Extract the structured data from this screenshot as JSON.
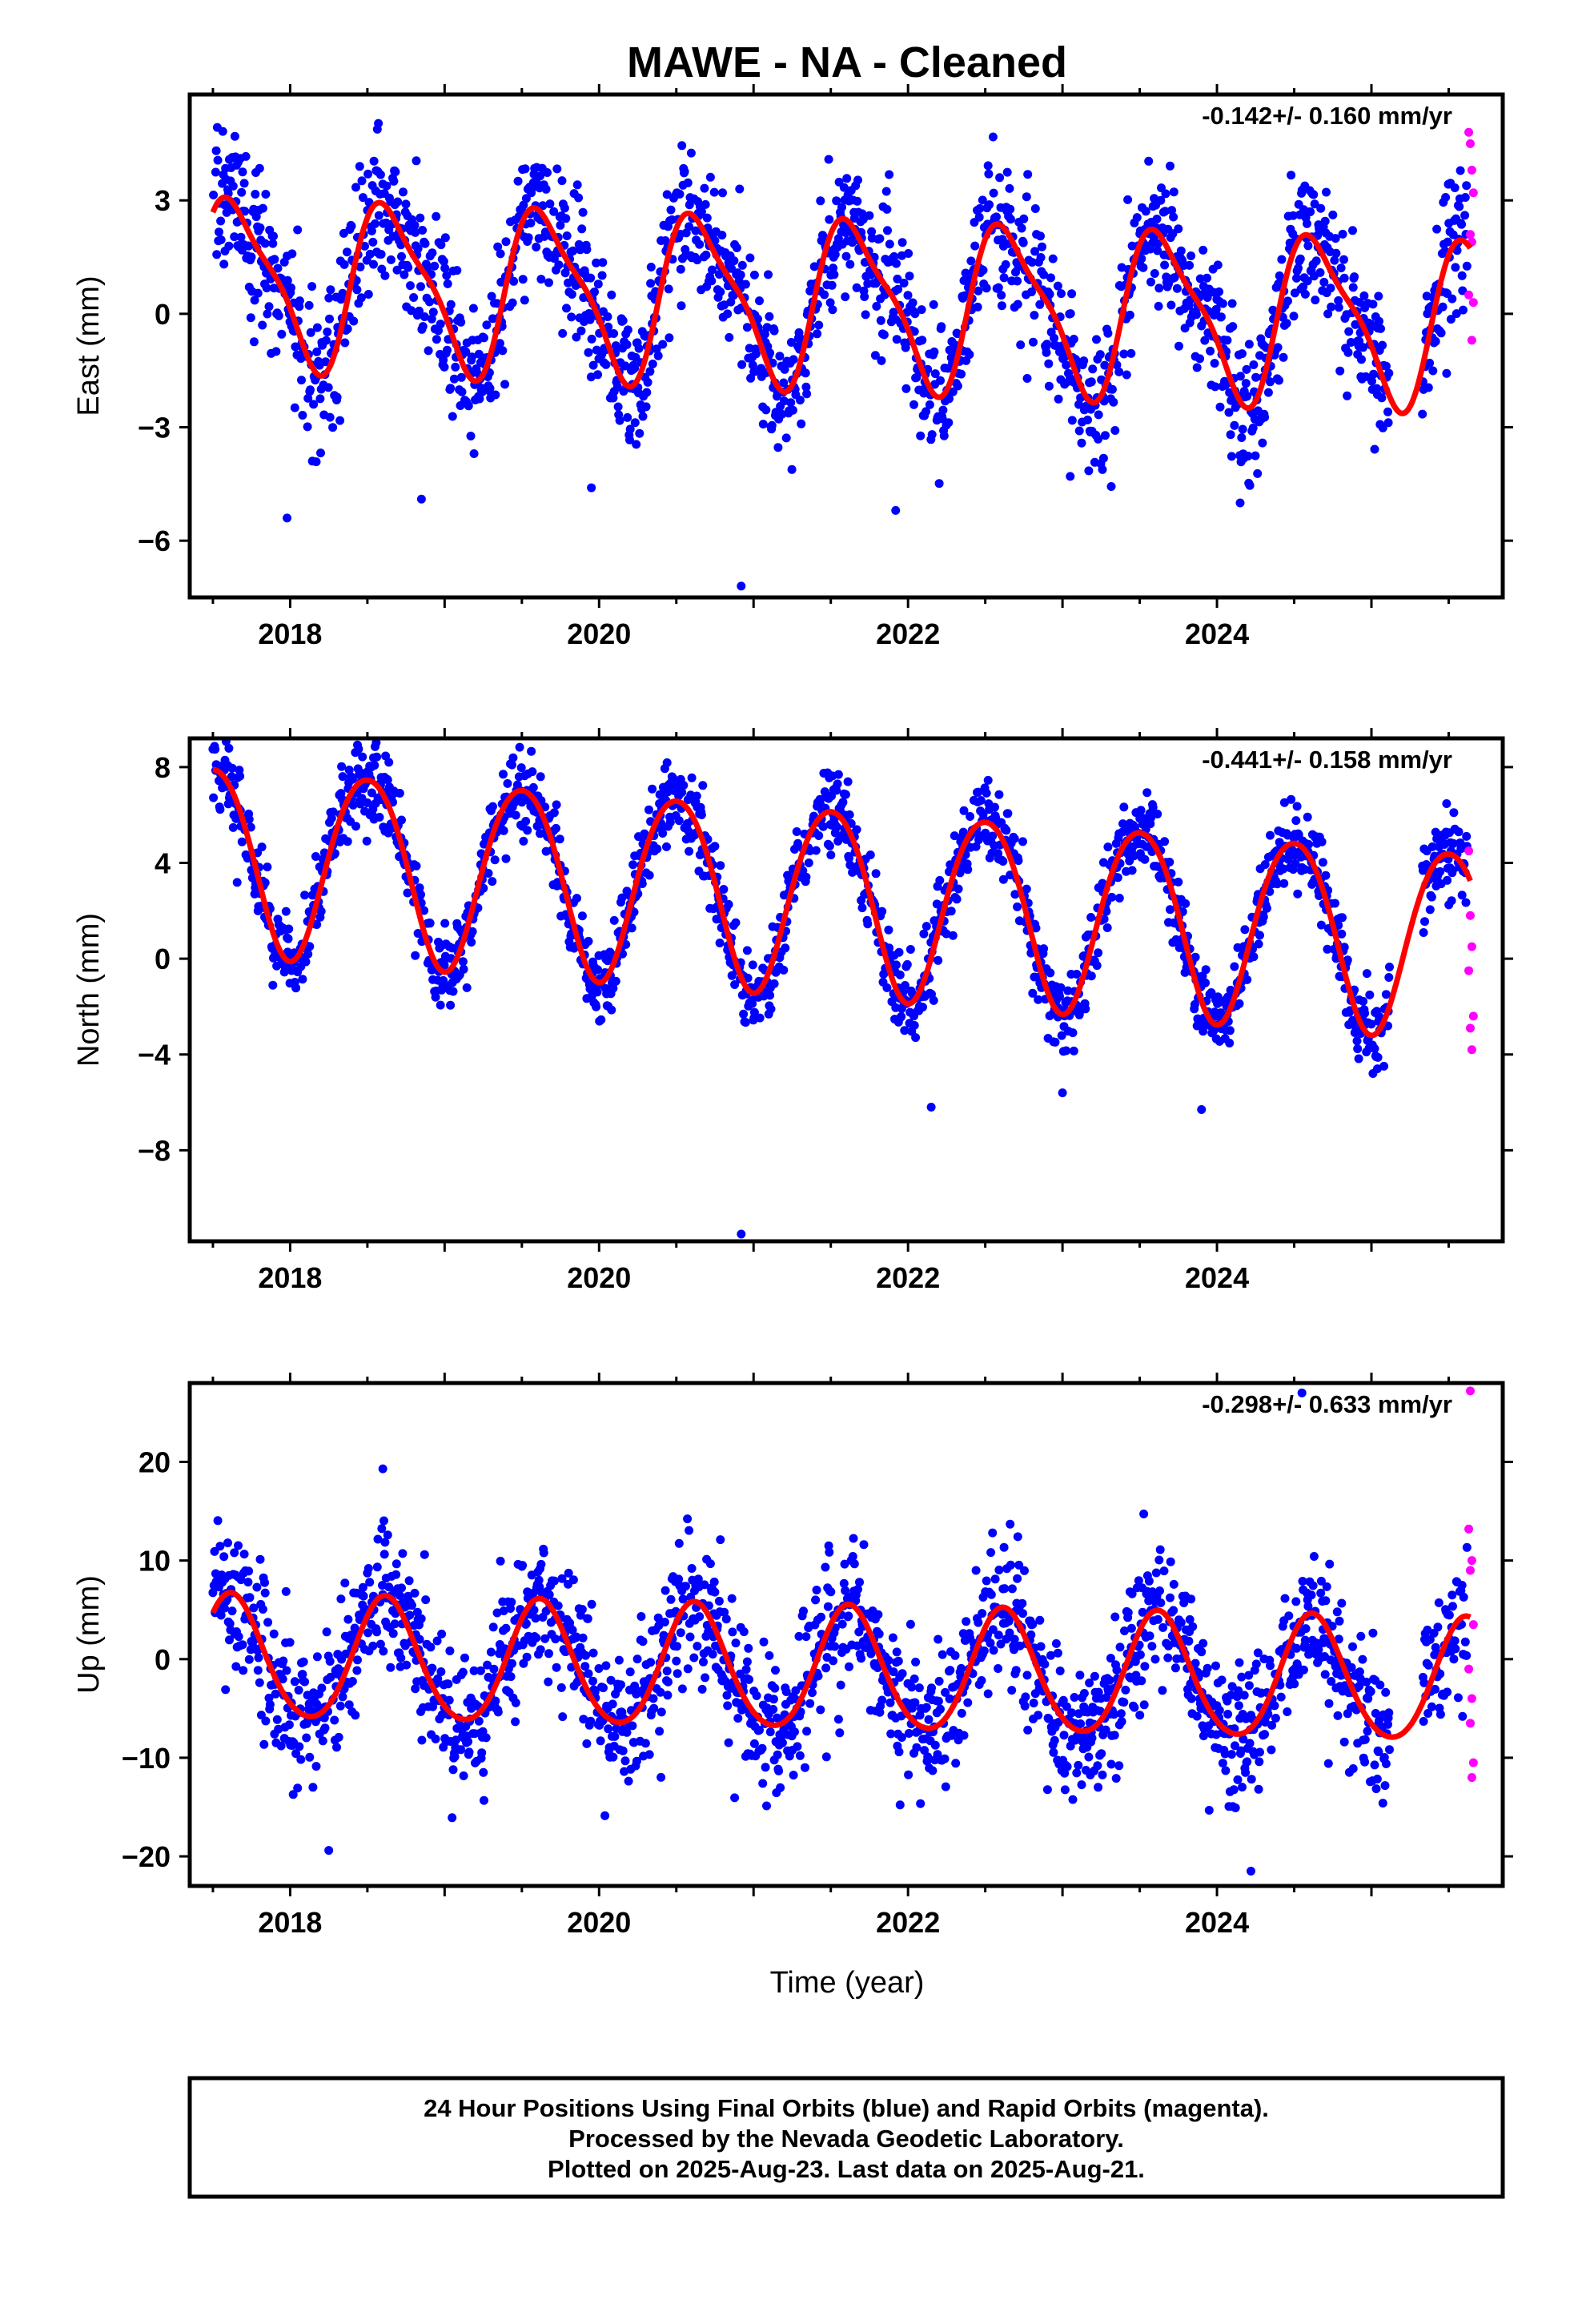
{
  "title": "MAWE  - NA - Cleaned",
  "x_axis_label": "Time (year)",
  "footer": {
    "line1": "24 Hour Positions Using Final Orbits (blue) and Rapid Orbits (magenta).",
    "line2": "Processed by the Nevada Geodetic Laboratory.",
    "line3": "Plotted on 2025-Aug-23. Last data on 2025-Aug-21."
  },
  "colors": {
    "final": "#0000ff",
    "rapid": "#ff00ff",
    "fit": "#ff0000",
    "frame": "#000000"
  },
  "chart_data": [
    {
      "type": "scatter",
      "name": "east",
      "ylabel": "East (mm)",
      "rate_text": "-0.142+/- 0.160 mm/yr",
      "xlim": [
        2017.35,
        2025.85
      ],
      "ylim": [
        -7.5,
        5.8
      ],
      "xticks": [
        2018,
        2020,
        2022,
        2024
      ],
      "yticks": [
        3,
        0,
        -3,
        -6
      ],
      "ytick_labels": [
        "3",
        "0",
        "−3",
        "−6"
      ],
      "start": 2017.5,
      "end": 2025.64,
      "series": [
        {
          "name": "Final Orbits",
          "color": "#0000ff"
        },
        {
          "name": "Rapid Orbits",
          "color": "#ff00ff"
        },
        {
          "name": "Fit",
          "color": "#ff0000"
        }
      ],
      "fit": {
        "offset": 0.9,
        "trend": -0.142,
        "amp_annual": 2.1,
        "peak_phase": 0.65,
        "amp_semi": 0.55,
        "semi_phase": 0.0
      },
      "scatter_sigma": 0.95,
      "outliers": [
        [
          2020.92,
          -7.2
        ],
        [
          2017.98,
          -5.4
        ],
        [
          2021.92,
          -5.2
        ],
        [
          2024.15,
          -5.0
        ],
        [
          2018.85,
          -4.9
        ],
        [
          2019.95,
          -4.6
        ],
        [
          2023.05,
          -4.3
        ]
      ],
      "rapid_points": [
        [
          2025.63,
          4.8
        ],
        [
          2025.64,
          4.5
        ],
        [
          2025.65,
          3.8
        ],
        [
          2025.66,
          3.2
        ],
        [
          2025.64,
          2.1
        ],
        [
          2025.65,
          1.9
        ],
        [
          2025.63,
          0.5
        ],
        [
          2025.66,
          0.3
        ],
        [
          2025.65,
          -0.7
        ]
      ]
    },
    {
      "type": "scatter",
      "name": "north",
      "ylabel": "North (mm)",
      "rate_text": "-0.441+/- 0.158 mm/yr",
      "xlim": [
        2017.35,
        2025.85
      ],
      "ylim": [
        -11.8,
        9.2
      ],
      "xticks": [
        2018,
        2020,
        2022,
        2024
      ],
      "yticks": [
        8,
        4,
        0,
        -4,
        -8
      ],
      "ytick_labels": [
        "8",
        "4",
        "0",
        "−4",
        "−8"
      ],
      "start": 2017.5,
      "end": 2025.64,
      "series": [
        {
          "name": "Final Orbits",
          "color": "#0000ff"
        },
        {
          "name": "Rapid Orbits",
          "color": "#ff00ff"
        },
        {
          "name": "Fit",
          "color": "#ff0000"
        }
      ],
      "fit": {
        "offset": 4.3,
        "trend": -0.441,
        "amp_annual": 3.9,
        "peak_phase": 0.5,
        "amp_semi": 0.3,
        "semi_phase": 0.25
      },
      "scatter_sigma": 0.85,
      "outliers": [
        [
          2020.92,
          -11.5
        ],
        [
          2022.15,
          -6.2
        ],
        [
          2023.0,
          -5.6
        ],
        [
          2023.9,
          -6.3
        ]
      ],
      "rapid_points": [
        [
          2025.63,
          4.5
        ],
        [
          2025.64,
          1.8
        ],
        [
          2025.65,
          0.5
        ],
        [
          2025.63,
          -0.5
        ],
        [
          2025.66,
          -2.4
        ],
        [
          2025.64,
          -2.9
        ],
        [
          2025.65,
          -3.8
        ]
      ]
    },
    {
      "type": "scatter",
      "name": "up",
      "ylabel": "Up (mm)",
      "rate_text": "-0.298+/- 0.633 mm/yr",
      "xlim": [
        2017.35,
        2025.85
      ],
      "ylim": [
        -23,
        28
      ],
      "xticks": [
        2018,
        2020,
        2022,
        2024
      ],
      "yticks": [
        20,
        10,
        0,
        -10,
        -20
      ],
      "ytick_labels": [
        "20",
        "10",
        "0",
        "−10",
        "−20"
      ],
      "start": 2017.5,
      "end": 2025.64,
      "series": [
        {
          "name": "Final Orbits",
          "color": "#0000ff"
        },
        {
          "name": "Rapid Orbits",
          "color": "#ff00ff"
        },
        {
          "name": "Fit",
          "color": "#ff0000"
        }
      ],
      "fit": {
        "offset": 0.0,
        "trend": -0.298,
        "amp_annual": 6.2,
        "peak_phase": 0.62,
        "amp_semi": 0.6,
        "semi_phase": 0.1
      },
      "scatter_sigma": 3.6,
      "outliers": [
        [
          2024.22,
          -21.5
        ],
        [
          2018.25,
          -19.4
        ],
        [
          2024.55,
          27.0
        ],
        [
          2018.6,
          19.3
        ]
      ],
      "rapid_points": [
        [
          2025.64,
          27.2
        ],
        [
          2025.63,
          13.2
        ],
        [
          2025.65,
          10.0
        ],
        [
          2025.64,
          9.0
        ],
        [
          2025.66,
          3.5
        ],
        [
          2025.63,
          -1.0
        ],
        [
          2025.65,
          -4.0
        ],
        [
          2025.64,
          -6.5
        ],
        [
          2025.66,
          -10.5
        ],
        [
          2025.65,
          -12.0
        ]
      ]
    }
  ]
}
